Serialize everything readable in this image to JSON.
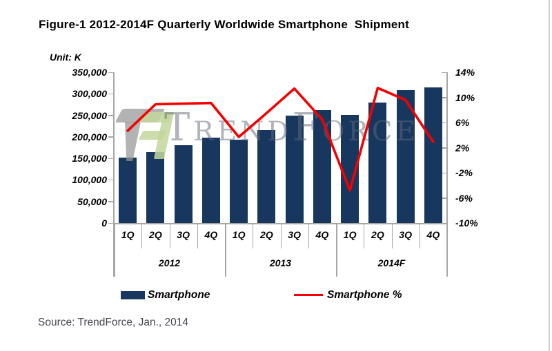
{
  "title": "Figure-1 2012-2014F Quarterly Worldwide Smartphone  Shipment",
  "unit_label": "Unit: K",
  "source": "Source: TrendForce, Jan., 2014",
  "watermark": {
    "text": "TrendForce"
  },
  "legend": [
    {
      "label": "Smartphone",
      "swatch": "bar"
    },
    {
      "label": "Smartphone %",
      "swatch": "line"
    }
  ],
  "colors": {
    "bar": "#17375E",
    "line": "#F40000",
    "axis": "#A6A6A6",
    "source_text": "#474750"
  },
  "chart_data": {
    "type": "bar",
    "subtype": "combo bar+line, dual axis",
    "title": "Figure-1 2012-2014F Quarterly Worldwide Smartphone Shipment",
    "categories": [
      "1Q",
      "2Q",
      "3Q",
      "4Q",
      "1Q",
      "2Q",
      "3Q",
      "4Q",
      "1Q",
      "2Q",
      "3Q",
      "4Q"
    ],
    "year_groups": [
      {
        "label": "2012",
        "span": 4
      },
      {
        "label": "2013",
        "span": 4
      },
      {
        "label": "2014F",
        "span": 4
      }
    ],
    "series": [
      {
        "name": "Smartphone",
        "type": "bar",
        "axis": "left",
        "unit": "K",
        "values": [
          152000,
          165000,
          181000,
          198000,
          194000,
          216000,
          250000,
          262000,
          251000,
          280000,
          308000,
          315000
        ]
      },
      {
        "name": "Smartphone %",
        "type": "line",
        "axis": "right",
        "unit": "%",
        "values": [
          4.7,
          8.9,
          9.0,
          9.1,
          3.7,
          7.5,
          11.4,
          6.5,
          -4.8,
          11.5,
          9.6,
          2.9
        ]
      }
    ],
    "left_axis": {
      "label": "Unit: K",
      "min": 0,
      "max": 350000,
      "step": 50000,
      "tick_labels": [
        "350,000",
        "300,000",
        "250,000",
        "200,000",
        "150,000",
        "100,000",
        "50,000",
        "0"
      ]
    },
    "right_axis": {
      "min": -10,
      "max": 14,
      "step": 4,
      "tick_labels": [
        "14%",
        "10%",
        "6%",
        "2%",
        "-2%",
        "-6%",
        "-10%"
      ]
    },
    "grid": false,
    "legend_position": "bottom"
  }
}
